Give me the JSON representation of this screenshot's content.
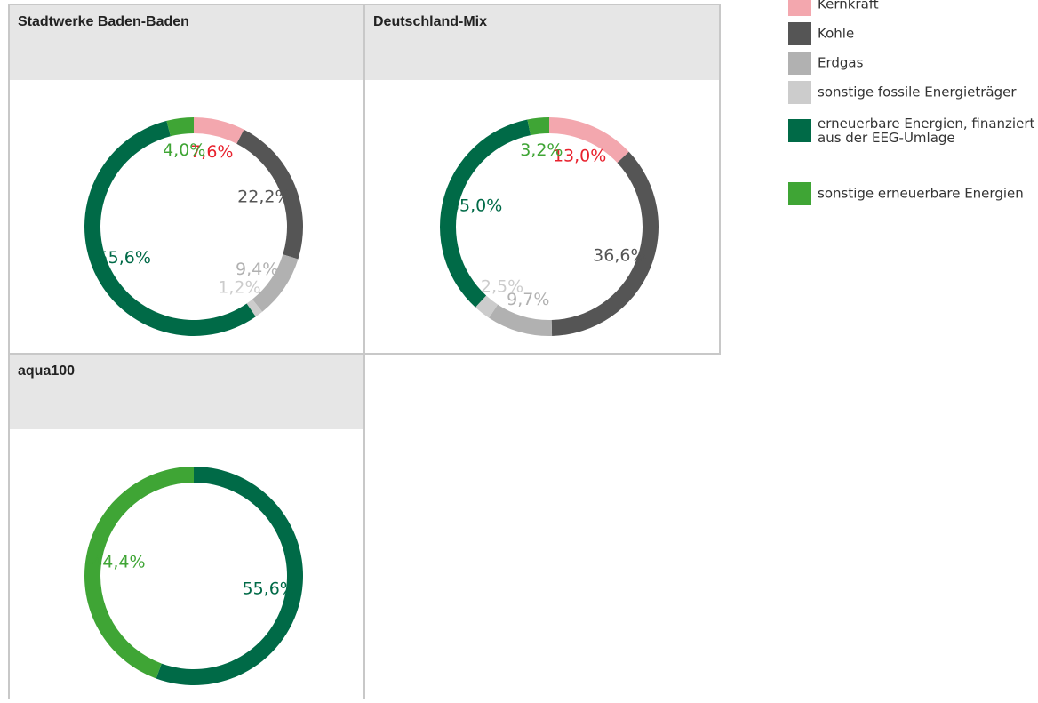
{
  "legend": {
    "categories": [
      "Kernkraft",
      "Kohle",
      "Erdgas",
      "sonstige fossile Energieträger",
      "erneuerbare Energien, finanziert aus der EEG-Umlage",
      "sonstige erneuerbare Energien"
    ],
    "colors": [
      "#f3a7ae",
      "#555555",
      "#b1b1b1",
      "#cccccc",
      "#006a47",
      "#3fa535"
    ],
    "label_colors": [
      "#e8212d",
      "#555555",
      "#b1b1b1",
      "#cccccc",
      "#006a47",
      "#3fa535"
    ]
  },
  "chart_data": [
    {
      "type": "pie",
      "title": "Stadtwerke Baden-Baden",
      "values": [
        7.6,
        22.2,
        9.4,
        1.2,
        55.6,
        4.0
      ],
      "value_labels": [
        "7,6%",
        "22,2%",
        "9,4%",
        "1,2%",
        "55,6%",
        "4,0%"
      ]
    },
    {
      "type": "pie",
      "title": "Deutschland-Mix",
      "values": [
        13.0,
        36.6,
        9.7,
        2.5,
        35.0,
        3.2
      ],
      "value_labels": [
        "13,0%",
        "36,6%",
        "9,7%",
        "2,5%",
        "35,0%",
        "3,2%"
      ]
    },
    {
      "type": "pie",
      "title": "aqua100",
      "values": [
        null,
        null,
        null,
        null,
        55.6,
        44.4
      ],
      "value_labels": [
        null,
        null,
        null,
        null,
        "55,6%",
        "44,4%"
      ]
    }
  ]
}
